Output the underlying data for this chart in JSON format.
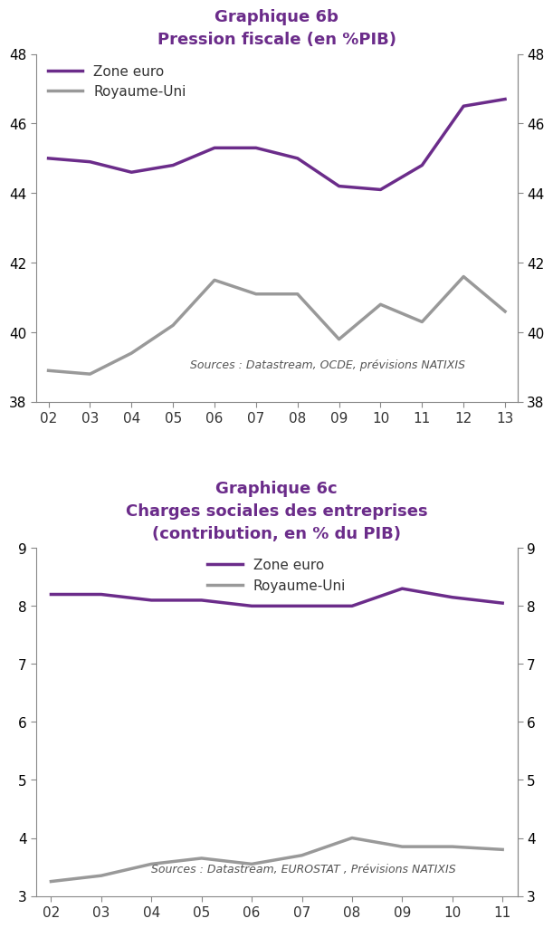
{
  "chart1": {
    "title_line1": "Graphique 6b",
    "title_line2": "Pression fiscale (en %PIB)",
    "x": [
      2,
      3,
      4,
      5,
      6,
      7,
      8,
      9,
      10,
      11,
      12,
      13
    ],
    "x_labels": [
      "02",
      "03",
      "04",
      "05",
      "06",
      "07",
      "08",
      "09",
      "10",
      "11",
      "12",
      "13"
    ],
    "zone_euro": [
      45.0,
      44.9,
      44.6,
      44.8,
      45.3,
      45.3,
      45.0,
      44.2,
      44.1,
      44.8,
      46.5,
      46.7
    ],
    "royaume_uni": [
      38.9,
      38.8,
      39.4,
      40.2,
      41.5,
      41.1,
      41.1,
      39.8,
      40.8,
      40.3,
      41.6,
      40.6
    ],
    "ylim": [
      38,
      48
    ],
    "yticks": [
      38,
      40,
      42,
      44,
      46,
      48
    ],
    "source_text": "Sources : Datastream, OCDE, prévisions NATIXIS"
  },
  "chart2": {
    "title_line1": "Graphique 6c",
    "title_line2": "Charges sociales des entreprises",
    "title_line3": "(contribution, en % du PIB)",
    "x": [
      2,
      3,
      4,
      5,
      6,
      7,
      8,
      9,
      10,
      11
    ],
    "x_labels": [
      "02",
      "03",
      "04",
      "05",
      "06",
      "07",
      "08",
      "09",
      "10",
      "11"
    ],
    "zone_euro": [
      8.2,
      8.2,
      8.1,
      8.1,
      8.0,
      8.0,
      8.0,
      8.3,
      8.15,
      8.05
    ],
    "royaume_uni": [
      3.25,
      3.35,
      3.55,
      3.65,
      3.55,
      3.7,
      4.0,
      3.85,
      3.85,
      3.8
    ],
    "ylim": [
      3,
      9
    ],
    "yticks": [
      3,
      4,
      5,
      6,
      7,
      8,
      9
    ],
    "source_text": "Sources : Datastream, EUROSTAT , Prévisions NATIXIS"
  },
  "purple_color": "#6B2C8A",
  "gray_color": "#999999",
  "title_color": "#6B2C8A",
  "line_width": 2.5,
  "legend_zone_euro": "Zone euro",
  "legend_royaume_uni": "Royaume-Uni",
  "bg_color": "#FFFFFF",
  "tick_color": "#333333",
  "source_color": "#555555",
  "tick_fontsize": 11,
  "title_fontsize": 13,
  "legend_fontsize": 11,
  "source_fontsize": 9
}
